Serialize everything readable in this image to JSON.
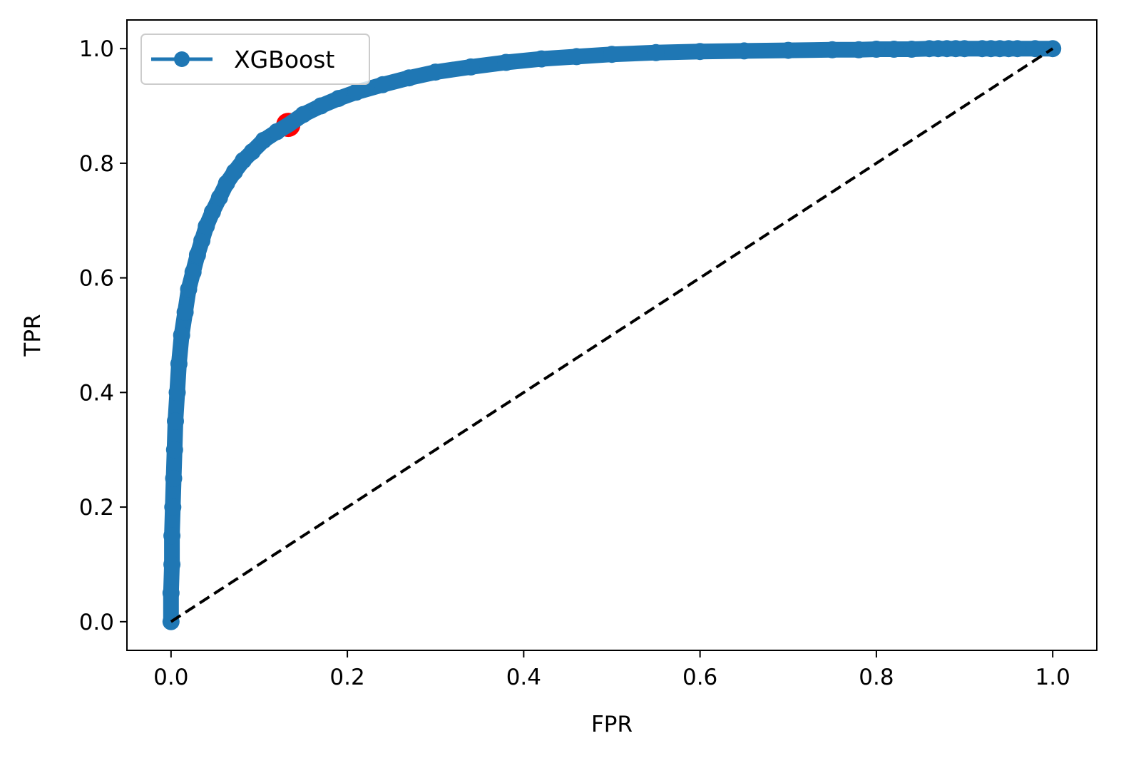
{
  "chart_data": {
    "type": "line",
    "title": "",
    "xlabel": "FPR",
    "ylabel": "TPR",
    "xlim": [
      -0.05,
      1.05
    ],
    "ylim": [
      -0.05,
      1.05
    ],
    "x_ticks": [
      "0.0",
      "0.2",
      "0.4",
      "0.6",
      "0.8",
      "1.0"
    ],
    "y_ticks": [
      "0.0",
      "0.2",
      "0.4",
      "0.6",
      "0.8",
      "1.0"
    ],
    "grid": false,
    "legend_position": "top-left",
    "series": [
      {
        "name": "XGBoost",
        "color": "#1f77b4",
        "marker": "circle",
        "x": [
          0.0,
          0.0,
          0.001,
          0.001,
          0.002,
          0.003,
          0.004,
          0.005,
          0.007,
          0.009,
          0.012,
          0.016,
          0.02,
          0.025,
          0.03,
          0.035,
          0.04,
          0.047,
          0.055,
          0.063,
          0.072,
          0.082,
          0.092,
          0.105,
          0.12,
          0.133,
          0.15,
          0.17,
          0.19,
          0.21,
          0.24,
          0.27,
          0.3,
          0.34,
          0.38,
          0.42,
          0.46,
          0.5,
          0.55,
          0.6,
          0.65,
          0.7,
          0.75,
          0.78,
          0.8,
          0.82,
          0.84,
          0.86,
          0.87,
          0.88,
          0.89,
          0.9,
          0.92,
          0.93,
          0.94,
          0.95,
          0.96,
          0.98,
          1.0
        ],
        "y": [
          0.0,
          0.05,
          0.1,
          0.15,
          0.2,
          0.25,
          0.3,
          0.35,
          0.4,
          0.45,
          0.5,
          0.54,
          0.58,
          0.61,
          0.64,
          0.665,
          0.69,
          0.715,
          0.74,
          0.765,
          0.785,
          0.805,
          0.82,
          0.84,
          0.855,
          0.867,
          0.885,
          0.9,
          0.913,
          0.924,
          0.937,
          0.949,
          0.959,
          0.968,
          0.976,
          0.982,
          0.986,
          0.99,
          0.993,
          0.995,
          0.996,
          0.997,
          0.998,
          0.998,
          0.999,
          0.999,
          0.999,
          1.0,
          1.0,
          1.0,
          1.0,
          1.0,
          1.0,
          1.0,
          1.0,
          1.0,
          1.0,
          1.0,
          1.0
        ]
      }
    ],
    "highlight_point": {
      "x": 0.133,
      "y": 0.867,
      "color": "#ff0000"
    },
    "reference_line": {
      "x": [
        0.0,
        1.0
      ],
      "y": [
        0.0,
        1.0
      ],
      "color": "#000000",
      "style": "dashed"
    }
  }
}
